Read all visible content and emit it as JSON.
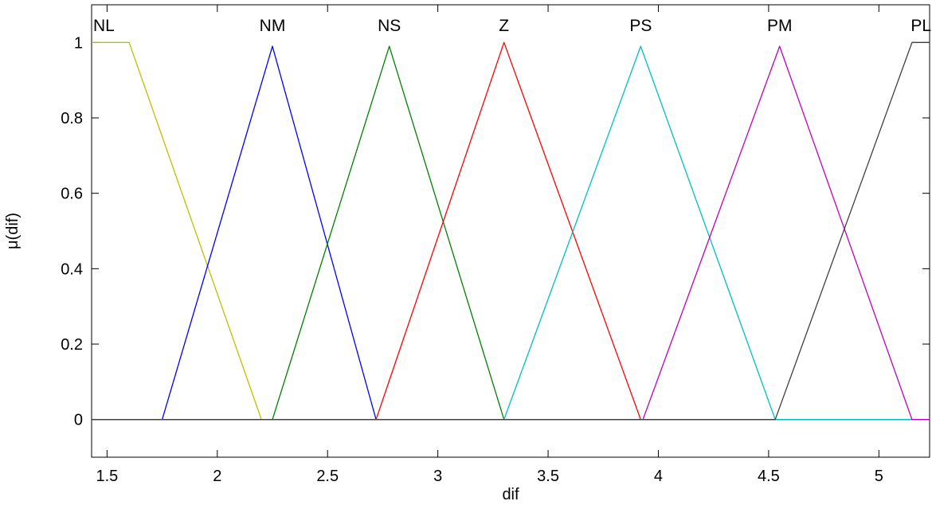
{
  "chart_data": {
    "type": "line",
    "title": "",
    "xlabel": "dif",
    "ylabel": "μ(dif)",
    "xlim": [
      1.43,
      5.23
    ],
    "ylim": [
      -0.1,
      1.1
    ],
    "xticks": [
      1.5,
      2,
      2.5,
      3,
      3.5,
      4,
      4.5,
      5
    ],
    "xtick_labels": [
      "1.5",
      "2",
      "2.5",
      "3",
      "3.5",
      "4",
      "4.5",
      "5"
    ],
    "yticks": [
      0,
      0.2,
      0.4,
      0.6,
      0.8,
      1
    ],
    "ytick_labels": [
      "0",
      "0.2",
      "0.4",
      "0.6",
      "0.8",
      "1"
    ],
    "grid": false,
    "series": [
      {
        "name": "NL",
        "color": "#bfbf00",
        "x": [
          1.43,
          1.6,
          2.2,
          5.23
        ],
        "y": [
          1,
          1,
          0,
          0
        ]
      },
      {
        "name": "NM",
        "color": "#0000ff",
        "x": [
          1.43,
          1.75,
          2.25,
          2.72,
          5.23
        ],
        "y": [
          0,
          0,
          0.99,
          0,
          0
        ]
      },
      {
        "name": "NS",
        "color": "#008000",
        "x": [
          1.43,
          2.25,
          2.78,
          3.3,
          5.23
        ],
        "y": [
          0,
          0,
          0.99,
          0,
          0
        ]
      },
      {
        "name": "Z",
        "color": "#ff0000",
        "x": [
          1.43,
          2.72,
          3.3,
          3.92,
          5.23
        ],
        "y": [
          0,
          0,
          1,
          0,
          0
        ]
      },
      {
        "name": "PS",
        "color": "#00bfbf",
        "x": [
          1.43,
          3.3,
          3.92,
          4.53,
          5.23
        ],
        "y": [
          0,
          0,
          0.99,
          0,
          0
        ]
      },
      {
        "name": "PM",
        "color": "#bf00bf",
        "x": [
          1.43,
          3.93,
          4.55,
          5.15,
          5.23
        ],
        "y": [
          0,
          0,
          0.99,
          0,
          0
        ]
      },
      {
        "name": "PL",
        "color": "#404040",
        "x": [
          1.43,
          4.53,
          5.15,
          5.23
        ],
        "y": [
          0,
          0,
          1,
          1
        ]
      }
    ]
  }
}
